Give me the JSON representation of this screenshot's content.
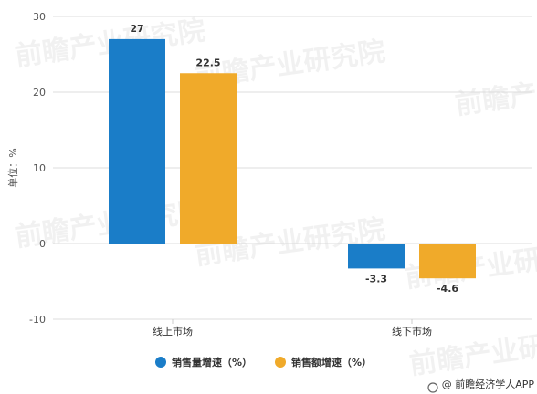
{
  "chart_data": {
    "type": "bar",
    "categories": [
      "线上市场",
      "线下市场"
    ],
    "series": [
      {
        "name": "销售量增速（%）",
        "values": [
          27,
          -3.3
        ],
        "labels": [
          "27",
          "-3.3"
        ],
        "color": "#1a7dc8"
      },
      {
        "name": "销售额增速（%）",
        "values": [
          22.5,
          -4.6
        ],
        "labels": [
          "22.5",
          "-4.6"
        ],
        "color": "#f0aa2a"
      }
    ],
    "ylabel": "单位：%",
    "ylim": [
      -10,
      30
    ],
    "yticks": [
      -10,
      0,
      10,
      20,
      30
    ],
    "grid": true,
    "legend_position": "bottom"
  },
  "credit": "@ 前瞻经济学人APP",
  "watermark": "前瞻产业研究院"
}
